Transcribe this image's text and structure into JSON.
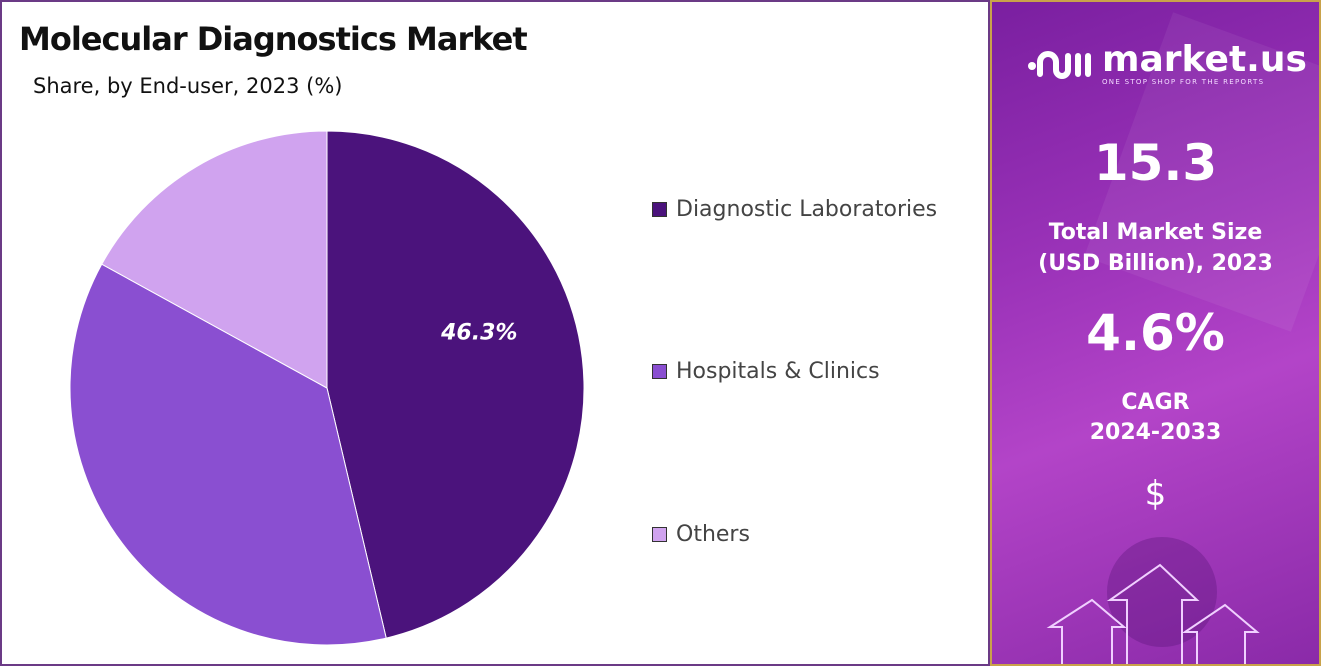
{
  "chart_data": {
    "type": "pie",
    "title": "Molecular Diagnostics Market",
    "subtitle": "Share, by End-user, 2023 (%)",
    "categories": [
      "Diagnostic Laboratories",
      "Hospitals & Clinics",
      "Others"
    ],
    "values": [
      46.3,
      36.7,
      17.0
    ],
    "colors": [
      "#4b137c",
      "#8a4fd1",
      "#d0a3ef"
    ],
    "data_labels": [
      "46.3%",
      "",
      ""
    ],
    "legend_position": "right"
  },
  "sidebar": {
    "logo_name": "market.us",
    "logo_tagline": "ONE STOP SHOP FOR THE REPORTS",
    "market_size": "15.3",
    "market_size_label_line1": "Total Market Size",
    "market_size_label_line2": "(USD Billion), 2023",
    "cagr": "4.6%",
    "cagr_label_line1": "CAGR",
    "cagr_label_line2": "2024-2033",
    "currency_symbol": "$"
  }
}
